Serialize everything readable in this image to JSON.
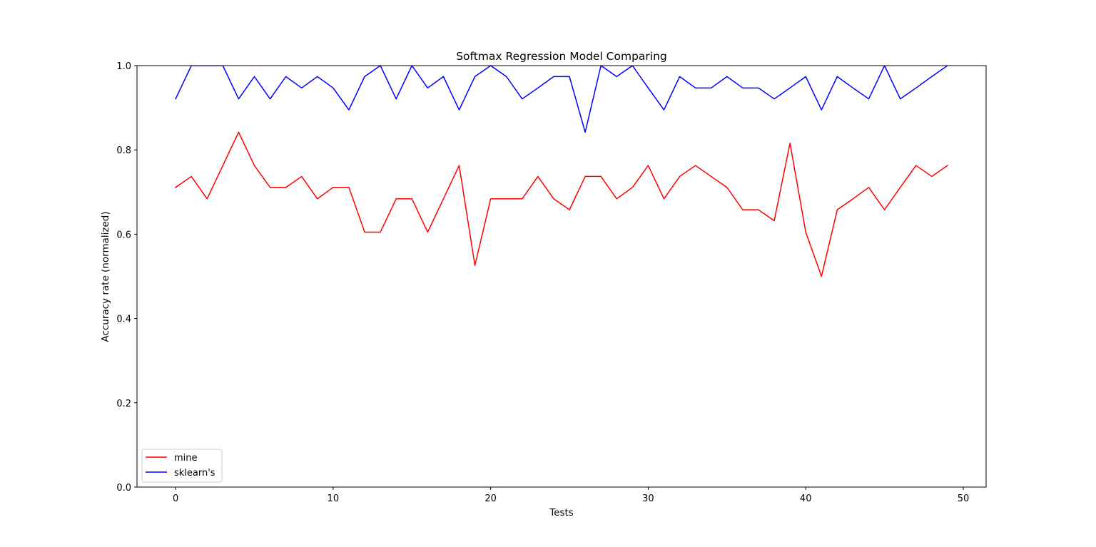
{
  "chart_data": {
    "type": "line",
    "title": "Softmax Regression Model Comparing",
    "xlabel": "Tests",
    "ylabel": "Accuracy rate (normalized)",
    "xlim": [
      -2.45,
      51.45
    ],
    "ylim": [
      0.0,
      1.0
    ],
    "xticks": [
      0,
      10,
      20,
      30,
      40,
      50
    ],
    "yticks": [
      0.0,
      0.2,
      0.4,
      0.6,
      0.8,
      1.0
    ],
    "xtick_labels": [
      "0",
      "10",
      "20",
      "30",
      "40",
      "50"
    ],
    "ytick_labels": [
      "0.0",
      "0.2",
      "0.4",
      "0.6",
      "0.8",
      "1.0"
    ],
    "grid": false,
    "legend": {
      "placement": "lower-left"
    },
    "x": [
      0,
      1,
      2,
      3,
      4,
      5,
      6,
      7,
      8,
      9,
      10,
      11,
      12,
      13,
      14,
      15,
      16,
      17,
      18,
      19,
      20,
      21,
      22,
      23,
      24,
      25,
      26,
      27,
      28,
      29,
      30,
      31,
      32,
      33,
      34,
      35,
      36,
      37,
      38,
      39,
      40,
      41,
      42,
      43,
      44,
      45,
      46,
      47,
      48,
      49
    ],
    "series": [
      {
        "name": "mine",
        "color": "#ff0000",
        "values": [
          0.711,
          0.737,
          0.684,
          0.763,
          0.842,
          0.763,
          0.711,
          0.711,
          0.737,
          0.684,
          0.711,
          0.711,
          0.605,
          0.605,
          0.684,
          0.684,
          0.605,
          0.684,
          0.763,
          0.526,
          0.684,
          0.684,
          0.684,
          0.737,
          0.684,
          0.658,
          0.737,
          0.737,
          0.684,
          0.711,
          0.763,
          0.684,
          0.737,
          0.763,
          0.737,
          0.711,
          0.658,
          0.658,
          0.632,
          0.816,
          0.605,
          0.5,
          0.658,
          0.684,
          0.711,
          0.658,
          0.711,
          0.763,
          0.737,
          0.763
        ]
      },
      {
        "name": "sklearn's",
        "color": "#0000ff",
        "values": [
          0.921,
          1.0,
          1.0,
          1.0,
          0.921,
          0.974,
          0.921,
          0.974,
          0.947,
          0.974,
          0.947,
          0.895,
          0.974,
          1.0,
          0.921,
          1.0,
          0.947,
          0.974,
          0.895,
          0.974,
          1.0,
          0.974,
          0.921,
          0.947,
          0.974,
          0.974,
          0.842,
          1.0,
          0.974,
          1.0,
          0.947,
          0.895,
          0.974,
          0.947,
          0.947,
          0.974,
          0.947,
          0.947,
          0.921,
          0.947,
          0.974,
          0.895,
          0.974,
          0.947,
          0.921,
          1.0,
          0.921,
          0.947,
          0.974,
          1.0
        ]
      }
    ]
  }
}
